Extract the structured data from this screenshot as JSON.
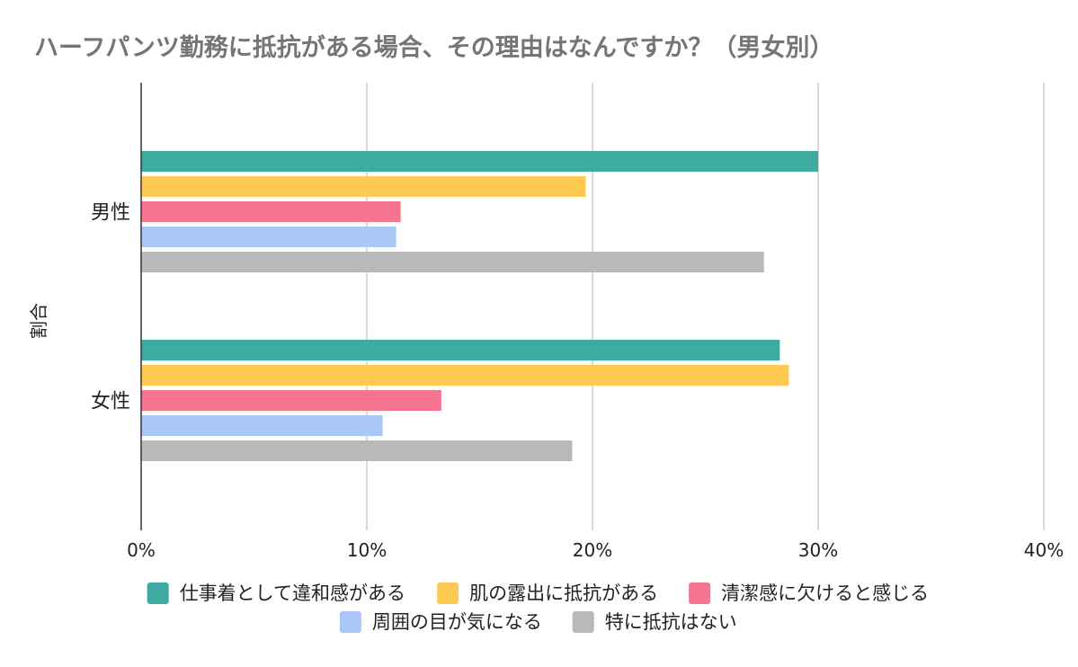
{
  "chart_data": {
    "type": "bar",
    "orientation": "horizontal",
    "title": "ハーフパンツ勤務に抵抗がある場合、その理由はなんですか？（男女別）",
    "xlabel": "",
    "ylabel": "割合",
    "xlim": [
      0,
      40
    ],
    "x_ticks": [
      "0%",
      "10%",
      "20%",
      "30%",
      "40%"
    ],
    "grid": true,
    "legend_position": "bottom",
    "categories": [
      "男性",
      "女性"
    ],
    "series": [
      {
        "name": "仕事着として違和感がある",
        "color": "#3dab9f",
        "values": [
          30.0,
          28.3
        ]
      },
      {
        "name": "肌の露出に抵抗がある",
        "color": "#ffca54",
        "values": [
          19.7,
          28.7
        ]
      },
      {
        "name": "清潔感に欠けると感じる",
        "color": "#f57591",
        "values": [
          11.5,
          13.3
        ]
      },
      {
        "name": "周囲の目が気になる",
        "color": "#a9c6f7",
        "values": [
          11.3,
          10.7
        ]
      },
      {
        "name": "特に抵抗はない",
        "color": "#b9b9b9",
        "values": [
          27.6,
          19.1
        ]
      }
    ]
  }
}
